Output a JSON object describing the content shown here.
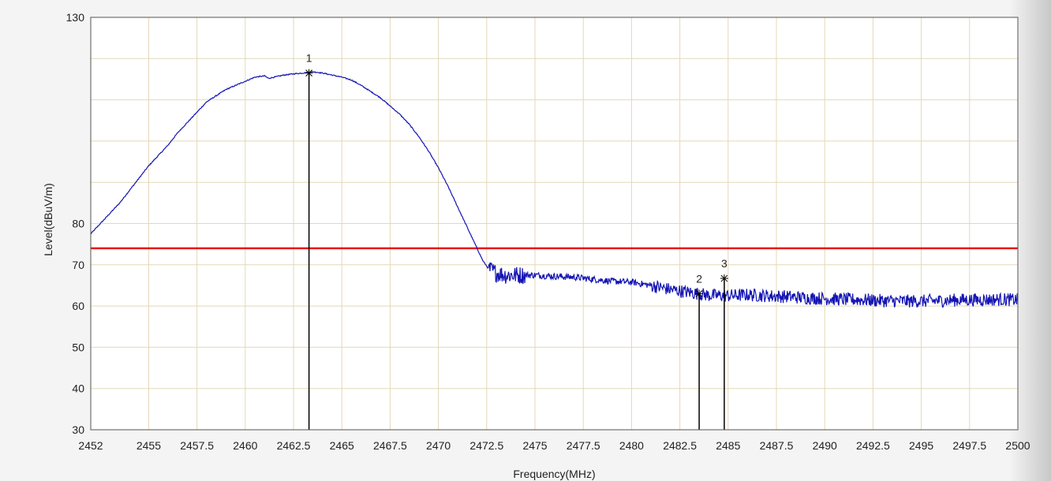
{
  "chart_data": {
    "type": "line",
    "xlabel": "Frequency(MHz)",
    "ylabel": "Level(dBuV/m)",
    "xlim": [
      2452,
      2500
    ],
    "ylim": [
      30,
      130
    ],
    "grid": true,
    "x_ticks": [
      {
        "value": 2452,
        "label": "2452"
      },
      {
        "value": 2455,
        "label": "2455"
      },
      {
        "value": 2457.5,
        "label": "2457.5"
      },
      {
        "value": 2460,
        "label": "2460"
      },
      {
        "value": 2462.5,
        "label": "2462.5"
      },
      {
        "value": 2465,
        "label": "2465"
      },
      {
        "value": 2467.5,
        "label": "2467.5"
      },
      {
        "value": 2470,
        "label": "2470"
      },
      {
        "value": 2472.5,
        "label": "2472.5"
      },
      {
        "value": 2475,
        "label": "2475"
      },
      {
        "value": 2477.5,
        "label": "2477.5"
      },
      {
        "value": 2480,
        "label": "2480"
      },
      {
        "value": 2482.5,
        "label": "2482.5"
      },
      {
        "value": 2485,
        "label": "2485"
      },
      {
        "value": 2487.5,
        "label": "2487.5"
      },
      {
        "value": 2490,
        "label": "2490"
      },
      {
        "value": 2492.5,
        "label": "2492.5"
      },
      {
        "value": 2495,
        "label": "2495"
      },
      {
        "value": 2497.5,
        "label": "2497.5"
      },
      {
        "value": 2500,
        "label": "2500"
      }
    ],
    "y_ticks": [
      {
        "value": 30,
        "label": "30"
      },
      {
        "value": 40,
        "label": "40"
      },
      {
        "value": 50,
        "label": "50"
      },
      {
        "value": 60,
        "label": "60"
      },
      {
        "value": 70,
        "label": "70"
      },
      {
        "value": 80,
        "label": "80"
      },
      {
        "value": 130,
        "label": "130"
      }
    ],
    "limit_line": {
      "y": 74,
      "color": "#e8141b"
    },
    "series": [
      {
        "color": "#1414b4",
        "x": [
          2452,
          2452.5,
          2453,
          2453.5,
          2454,
          2454.5,
          2455,
          2455.5,
          2456,
          2456.5,
          2457,
          2457.5,
          2458,
          2458.5,
          2459,
          2459.5,
          2460,
          2460.5,
          2461,
          2461.2,
          2461.5,
          2462,
          2462.5,
          2463,
          2463.5,
          2464,
          2464.5,
          2465,
          2465.5,
          2466,
          2466.5,
          2467,
          2467.5,
          2468,
          2468.5,
          2469,
          2469.5,
          2470,
          2470.5,
          2471,
          2471.5,
          2472,
          2472.3,
          2472.6,
          2473,
          2473.5,
          2474,
          2475,
          2476,
          2477,
          2478,
          2479,
          2480,
          2481,
          2482,
          2483,
          2484,
          2485,
          2486,
          2487,
          2488,
          2489,
          2490,
          2491,
          2492,
          2493,
          2494,
          2495,
          2496,
          2497,
          2498,
          2499,
          2500
        ],
        "y": [
          77.5,
          80,
          82.5,
          85,
          88,
          91,
          94,
          96.5,
          99,
          102,
          104.5,
          107,
          109.5,
          111,
          112.5,
          113.5,
          114.5,
          115.5,
          115.8,
          115.2,
          115.5,
          116,
          116.3,
          116.5,
          116.8,
          116.5,
          116,
          115.5,
          114.8,
          113.5,
          112,
          110.5,
          108.5,
          106.5,
          104,
          101,
          97.5,
          93.5,
          89,
          84,
          79,
          74,
          71,
          69,
          68,
          67.5,
          67.5,
          67.5,
          67.2,
          67,
          66.5,
          66,
          65.8,
          65,
          64,
          63.3,
          62.6,
          62.5,
          62.7,
          62.5,
          62.3,
          62,
          61.8,
          61.6,
          61.5,
          61.3,
          61.2,
          61.2,
          61.3,
          61.5,
          61.5,
          61.6,
          61.5
        ]
      }
    ],
    "markers": [
      {
        "label": "1",
        "x": 2463.3,
        "y": 116.5
      },
      {
        "label": "2",
        "x": 2483.5,
        "y": 63.0
      },
      {
        "label": "3",
        "x": 2484.8,
        "y": 66.7
      }
    ]
  }
}
